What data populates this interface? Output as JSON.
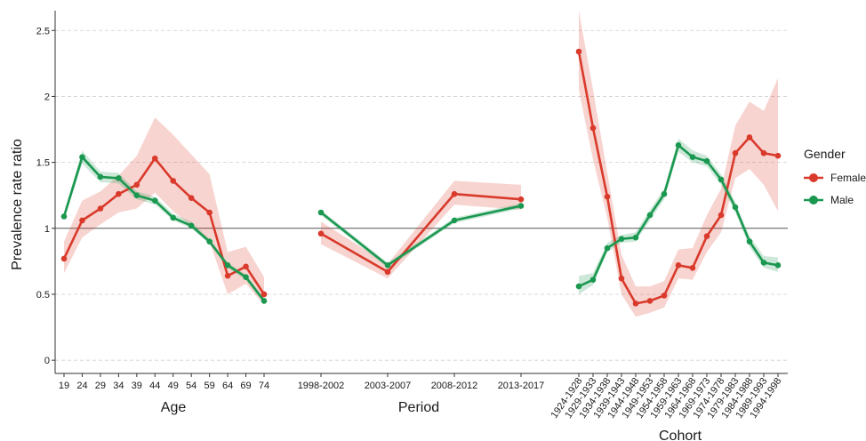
{
  "chart_data": {
    "type": "line",
    "ylabel": "Prevalence rate ratio",
    "ylim": [
      -0.1,
      2.65
    ],
    "yticks": [
      "0",
      "0.5",
      "1",
      "1.5",
      "2",
      "2.5"
    ],
    "reference_line": 1,
    "grid": "horizontal dashed",
    "colors": {
      "Female": "#d93a2b",
      "Male": "#1a9850"
    },
    "legend": {
      "title": "Gender",
      "placement": "right",
      "entries": [
        "Female",
        "Male"
      ]
    },
    "panels": [
      {
        "xlabel": "Age",
        "categories": [
          "19",
          "24",
          "29",
          "34",
          "39",
          "44",
          "49",
          "54",
          "59",
          "64",
          "69",
          "74"
        ],
        "series": [
          {
            "name": "Female",
            "values": [
              0.77,
              1.06,
              1.15,
              1.26,
              1.33,
              1.53,
              1.36,
              1.23,
              1.12,
              0.64,
              0.71,
              0.5
            ],
            "lower": [
              0.66,
              0.93,
              1.03,
              1.12,
              1.15,
              1.27,
              1.13,
              1.02,
              0.9,
              0.5,
              0.58,
              0.42
            ],
            "upper": [
              0.9,
              1.21,
              1.28,
              1.4,
              1.55,
              1.84,
              1.71,
              1.56,
              1.41,
              0.82,
              0.86,
              0.63
            ]
          },
          {
            "name": "Male",
            "values": [
              1.09,
              1.54,
              1.39,
              1.38,
              1.25,
              1.21,
              1.08,
              1.02,
              0.9,
              0.72,
              0.63,
              0.45
            ],
            "lower": [
              1.06,
              1.49,
              1.35,
              1.34,
              1.22,
              1.18,
              1.06,
              1.0,
              0.88,
              0.7,
              0.61,
              0.43
            ],
            "upper": [
              1.12,
              1.59,
              1.43,
              1.42,
              1.28,
              1.24,
              1.11,
              1.05,
              0.92,
              0.74,
              0.65,
              0.47
            ]
          }
        ]
      },
      {
        "xlabel": "Period",
        "categories": [
          "1998-2002",
          "2003-2007",
          "2008-2012",
          "2013-2017"
        ],
        "series": [
          {
            "name": "Female",
            "values": [
              0.96,
              0.67,
              1.26,
              1.22
            ],
            "lower": [
              0.88,
              0.62,
              1.18,
              1.14
            ],
            "upper": [
              1.05,
              0.73,
              1.36,
              1.33
            ]
          },
          {
            "name": "Male",
            "values": [
              1.12,
              0.72,
              1.06,
              1.17
            ],
            "lower": [
              1.1,
              0.7,
              1.04,
              1.15
            ],
            "upper": [
              1.14,
              0.74,
              1.08,
              1.19
            ]
          }
        ]
      },
      {
        "xlabel": "Cohort",
        "categories": [
          "1924-1928",
          "1929-1933",
          "1934-1938",
          "1939-1943",
          "1944-1948",
          "1949-1953",
          "1954-1958",
          "1959-1963",
          "1964-1968",
          "1969-1973",
          "1974-1978",
          "1979-1983",
          "1984-1988",
          "1989-1993",
          "1994-1998"
        ],
        "series": [
          {
            "name": "Female",
            "values": [
              2.34,
              1.76,
              1.24,
              0.62,
              0.43,
              0.45,
              0.49,
              0.72,
              0.7,
              0.94,
              1.1,
              1.57,
              1.69,
              1.57,
              1.55
            ],
            "lower": [
              2.05,
              1.52,
              1.08,
              0.5,
              0.33,
              0.36,
              0.4,
              0.62,
              0.61,
              0.82,
              0.97,
              1.38,
              1.45,
              1.33,
              1.13
            ],
            "upper": [
              2.7,
              2.05,
              1.42,
              0.8,
              0.56,
              0.56,
              0.6,
              0.84,
              0.85,
              1.1,
              1.3,
              1.78,
              1.96,
              1.89,
              2.14
            ]
          },
          {
            "name": "Male",
            "values": [
              0.56,
              0.61,
              0.85,
              0.92,
              0.93,
              1.1,
              1.26,
              1.63,
              1.54,
              1.51,
              1.37,
              1.16,
              0.9,
              0.74,
              0.72
            ],
            "lower": [
              0.5,
              0.57,
              0.82,
              0.89,
              0.9,
              1.06,
              1.22,
              1.58,
              1.5,
              1.47,
              1.33,
              1.12,
              0.86,
              0.7,
              0.67
            ],
            "upper": [
              0.64,
              0.66,
              0.89,
              0.95,
              0.97,
              1.14,
              1.3,
              1.68,
              1.59,
              1.55,
              1.41,
              1.2,
              0.94,
              0.79,
              0.78
            ]
          }
        ]
      }
    ]
  }
}
